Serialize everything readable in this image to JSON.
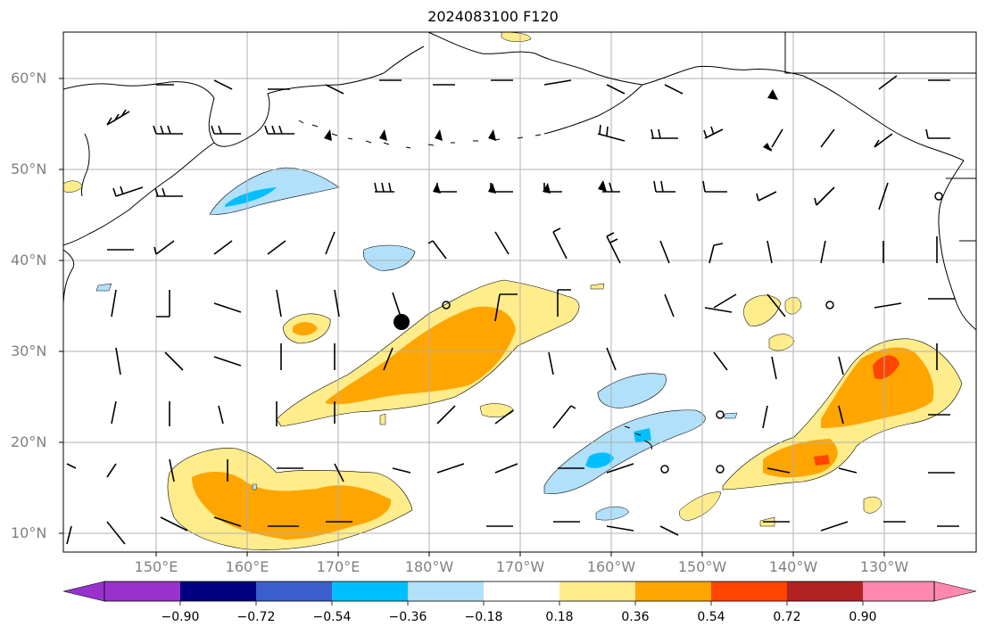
{
  "title": "2024083100 F120",
  "latitude_labels": [
    "60°N",
    "50°N",
    "40°N",
    "30°N",
    "20°N",
    "10°N"
  ],
  "longitude_labels": [
    "150°E",
    "160°E",
    "170°E",
    "180°W",
    "170°W",
    "160°W",
    "150°W",
    "140°W",
    "130°W"
  ],
  "colorbar": {
    "labels": [
      "−0.90",
      "−0.72",
      "−0.54",
      "−0.36",
      "−0.18",
      "0.18",
      "0.36",
      "0.54",
      "0.72",
      "0.90"
    ],
    "colors": {
      "under": "#9932cc",
      "neg_090": "#000080",
      "neg_072": "#3a5fcd",
      "neg_054": "#00bfff",
      "neg_036": "#b0e0fa",
      "neutral": "#ffffff",
      "pos_018": "#ffec8b",
      "pos_036": "#ffa500",
      "pos_054": "#ff4500",
      "pos_072": "#b22222",
      "over": "#ff88b0"
    }
  },
  "land_color": "#ffffff",
  "gridline_color": "#b0b0b0",
  "label_color": "#808080",
  "wind_barb_color": "#000000",
  "marker": {
    "name": "large-black-dot"
  }
}
